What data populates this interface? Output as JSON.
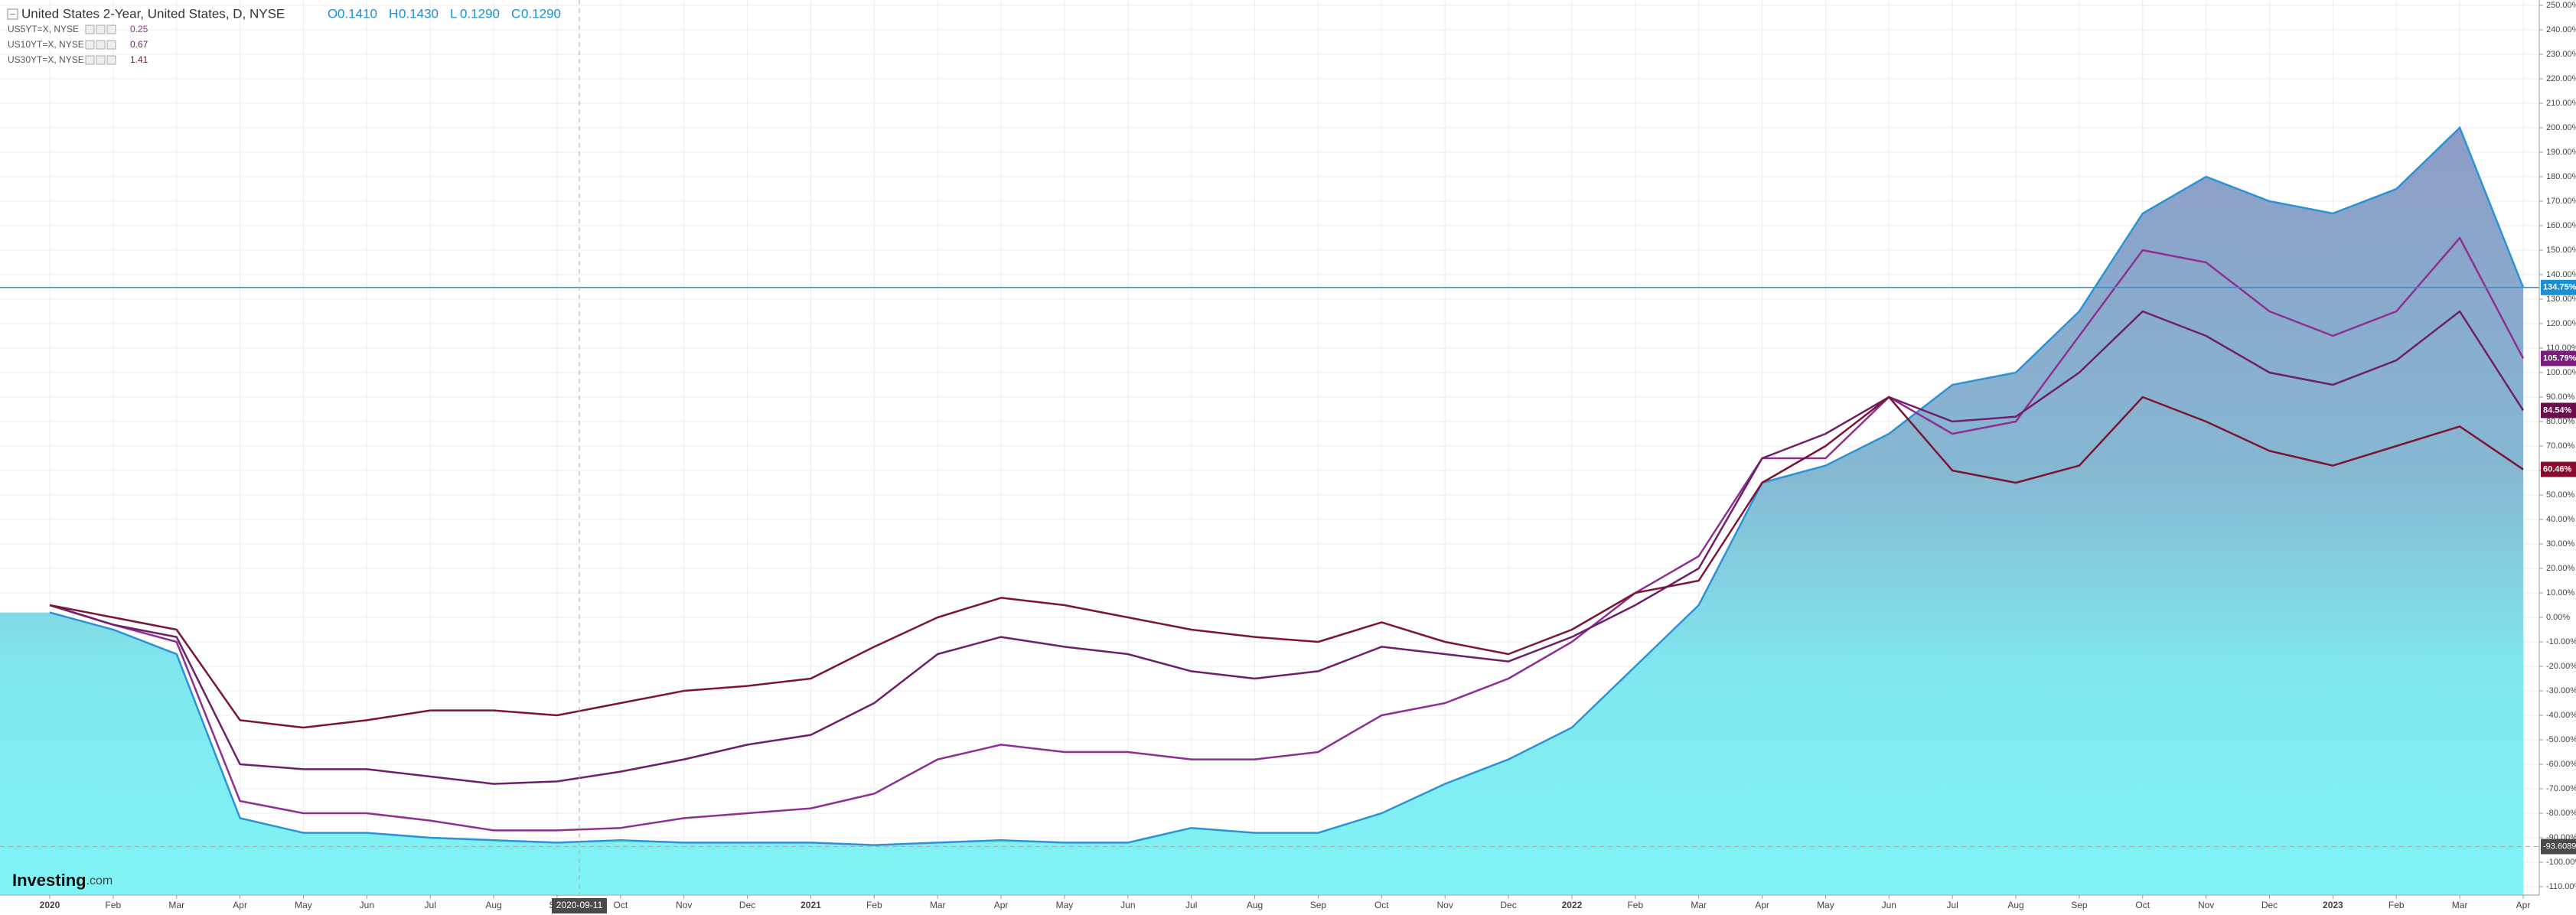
{
  "chart_data": {
    "type": "line",
    "title": "United States 2-Year, United States, D, NYSE",
    "ohlc": [
      {
        "key": "O",
        "text": "0.1410"
      },
      {
        "key": "H",
        "text": "0.1430"
      },
      {
        "key": "L",
        "text": "0.1290"
      },
      {
        "key": "C",
        "text": "0.1290"
      }
    ],
    "brand": "Investing",
    "brand_suffix": ".com",
    "crosshair_label": "2020-09-11",
    "crosshair_value": -93.6089,
    "grid": true,
    "categories": [
      "2020",
      "Feb",
      "Mar",
      "Apr",
      "May",
      "Jun",
      "Jul",
      "Aug",
      "Sep",
      "Oct",
      "Nov",
      "Dec",
      "2021",
      "Feb",
      "Mar",
      "Apr",
      "May",
      "Jun",
      "Jul",
      "Aug",
      "Sep",
      "Oct",
      "Nov",
      "Dec",
      "2022",
      "Feb",
      "Mar",
      "Apr",
      "May",
      "Jun",
      "Jul",
      "Aug",
      "Sep",
      "Oct",
      "Nov",
      "Dec",
      "2023",
      "Feb",
      "Mar",
      "Apr"
    ],
    "series": [
      {
        "name": "United States 2-Year",
        "style": "area",
        "color": "#2a93d5",
        "end_label": "134.75%",
        "values": [
          2,
          -5,
          -15,
          -82,
          -88,
          -88,
          -90,
          -91,
          -92,
          -91,
          -92,
          -92,
          -92,
          -93,
          -92,
          -91,
          -92,
          -92,
          -86,
          -88,
          -88,
          -80,
          -68,
          -58,
          -45,
          -20,
          5,
          55,
          62,
          75,
          95,
          100,
          125,
          165,
          180,
          170,
          165,
          175,
          200,
          134.75
        ]
      },
      {
        "name": "US5YT=X, NYSE",
        "legend_value": 0.25,
        "style": "line",
        "color": "#8e2f93",
        "end_label": "105.79%",
        "values": [
          5,
          -3,
          -10,
          -75,
          -80,
          -80,
          -83,
          -87,
          -87,
          -86,
          -82,
          -80,
          -78,
          -72,
          -58,
          -52,
          -55,
          -55,
          -58,
          -58,
          -55,
          -40,
          -35,
          -25,
          -10,
          10,
          25,
          65,
          65,
          90,
          75,
          80,
          115,
          150,
          145,
          125,
          115,
          125,
          155,
          105.79
        ]
      },
      {
        "name": "US10YT=X, NYSE",
        "legend_value": 0.67,
        "style": "line",
        "color": "#6e1f6a",
        "end_label": "84.54%",
        "values": [
          5,
          -3,
          -8,
          -60,
          -62,
          -62,
          -65,
          -68,
          -67,
          -63,
          -58,
          -52,
          -48,
          -35,
          -15,
          -8,
          -12,
          -15,
          -22,
          -25,
          -22,
          -12,
          -15,
          -18,
          -8,
          5,
          20,
          65,
          75,
          90,
          80,
          82,
          100,
          125,
          115,
          100,
          95,
          105,
          125,
          84.54
        ]
      },
      {
        "name": "US30YT=X, NYSE",
        "legend_value": 1.41,
        "style": "line",
        "color": "#7c1436",
        "end_label": "60.46%",
        "values": [
          5,
          0,
          -5,
          -42,
          -45,
          -42,
          -38,
          -38,
          -40,
          -35,
          -30,
          -28,
          -25,
          -12,
          0,
          8,
          5,
          0,
          -5,
          -8,
          -10,
          -2,
          -10,
          -15,
          -5,
          10,
          15,
          55,
          70,
          90,
          60,
          55,
          62,
          90,
          80,
          68,
          62,
          70,
          78,
          60.46
        ]
      }
    ],
    "ylim": [
      -110,
      250
    ],
    "yticks": [
      {
        "value": 250,
        "label": "250.00%"
      },
      {
        "value": 240,
        "label": "240.00%"
      },
      {
        "value": 230,
        "label": "230.00%"
      },
      {
        "value": 220,
        "label": "220.00%"
      },
      {
        "value": 210,
        "label": "210.00%"
      },
      {
        "value": 200,
        "label": "200.00%"
      },
      {
        "value": 190,
        "label": "190.00%"
      },
      {
        "value": 180,
        "label": "180.00%"
      },
      {
        "value": 170,
        "label": "170.00%"
      },
      {
        "value": 160,
        "label": "160.00%"
      },
      {
        "value": 150,
        "label": "150.00%"
      },
      {
        "value": 140,
        "label": "140.00%"
      },
      {
        "value": 130,
        "label": "130.00%"
      },
      {
        "value": 120,
        "label": "120.00%"
      },
      {
        "value": 110,
        "label": "110.00%"
      },
      {
        "value": 100,
        "label": "100.00%"
      },
      {
        "value": 90,
        "label": "90.00%"
      },
      {
        "value": 80,
        "label": "80.00%"
      },
      {
        "value": 70,
        "label": "70.00%"
      },
      {
        "value": 60,
        "label": "60.00%"
      },
      {
        "value": 50,
        "label": "50.00%"
      },
      {
        "value": 40,
        "label": "40.00%"
      },
      {
        "value": 30,
        "label": "30.00%"
      },
      {
        "value": 20,
        "label": "20.00%"
      },
      {
        "value": 10,
        "label": "10.00%"
      },
      {
        "value": 0,
        "label": "0.00%"
      },
      {
        "value": -10,
        "label": "-10.00%"
      },
      {
        "value": -20,
        "label": "-20.00%"
      },
      {
        "value": -30,
        "label": "-30.00%"
      },
      {
        "value": -40,
        "label": "-40.00%"
      },
      {
        "value": -50,
        "label": "-50.00%"
      },
      {
        "value": -60,
        "label": "-60.00%"
      },
      {
        "value": -70,
        "label": "-70.00%"
      },
      {
        "value": -80,
        "label": "-80.00%"
      },
      {
        "value": -90,
        "label": "-90.00%"
      },
      {
        "value": -100,
        "label": "-100.00%"
      },
      {
        "value": -110,
        "label": "-110.00%"
      }
    ]
  }
}
